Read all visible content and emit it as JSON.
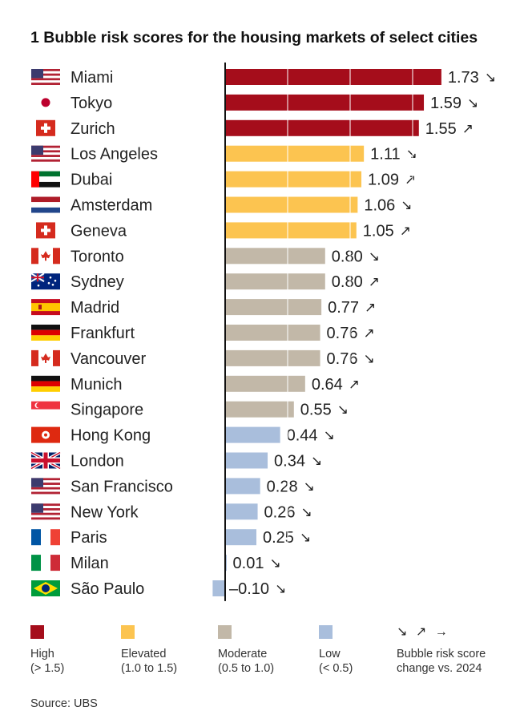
{
  "title": "1 Bubble risk scores for the housing markets of select cities",
  "source": "Source: UBS",
  "colors": {
    "high": "#a50d1b",
    "elevated": "#fcc450",
    "moderate": "#c2b8a8",
    "low": "#a9bedc",
    "axis": "#111111"
  },
  "legend": {
    "items": [
      {
        "key": "high",
        "label": "High",
        "range": "(> 1.5)"
      },
      {
        "key": "elevated",
        "label": "Elevated",
        "range": "(1.0 to 1.5)"
      },
      {
        "key": "moderate",
        "label": "Moderate",
        "range": "(0.5 to 1.0)"
      },
      {
        "key": "low",
        "label": "Low",
        "range": "(< 0.5)"
      }
    ],
    "arrows": "↘ ↗ →",
    "change_label_1": "Bubble risk score",
    "change_label_2": "change vs. 2024"
  },
  "chart_data": {
    "type": "bar",
    "orientation": "horizontal",
    "title": "1 Bubble risk scores for the housing markets of select cities",
    "xlim": [
      -0.1,
      1.73
    ],
    "categories": [
      "Miami",
      "Tokyo",
      "Zurich",
      "Los Angeles",
      "Dubai",
      "Amsterdam",
      "Geneva",
      "Toronto",
      "Sydney",
      "Madrid",
      "Frankfurt",
      "Vancouver",
      "Munich",
      "Singapore",
      "Hong Kong",
      "London",
      "San Francisco",
      "New York",
      "Paris",
      "Milan",
      "São Paulo"
    ],
    "values": [
      1.73,
      1.59,
      1.55,
      1.11,
      1.09,
      1.06,
      1.05,
      0.8,
      0.8,
      0.77,
      0.76,
      0.76,
      0.64,
      0.55,
      0.44,
      0.34,
      0.28,
      0.26,
      0.25,
      0.01,
      -0.1
    ],
    "value_labels": [
      "1.73",
      "1.59",
      "1.55",
      "1.11",
      "1.09",
      "1.06",
      "1.05",
      "0.80",
      "0.80",
      "0.77",
      "0.76",
      "0.76",
      "0.64",
      "0.55",
      "0.44",
      "0.34",
      "0.28",
      "0.26",
      "0.25",
      "0.01",
      "–0.10"
    ],
    "risk_category": [
      "high",
      "high",
      "high",
      "elevated",
      "elevated",
      "elevated",
      "elevated",
      "moderate",
      "moderate",
      "moderate",
      "moderate",
      "moderate",
      "moderate",
      "moderate",
      "low",
      "low",
      "low",
      "low",
      "low",
      "low",
      "low"
    ],
    "change_vs_2024": [
      "down",
      "down",
      "up",
      "down",
      "up",
      "down",
      "up",
      "down",
      "up",
      "up",
      "up",
      "down",
      "up",
      "down",
      "down",
      "down",
      "down",
      "down",
      "down",
      "down",
      "down"
    ],
    "flags": [
      "us",
      "jp",
      "ch",
      "us",
      "ae",
      "nl",
      "ch",
      "ca",
      "au",
      "es",
      "de",
      "ca",
      "de",
      "sg",
      "hk",
      "gb",
      "us",
      "us",
      "fr",
      "it",
      "br"
    ]
  }
}
